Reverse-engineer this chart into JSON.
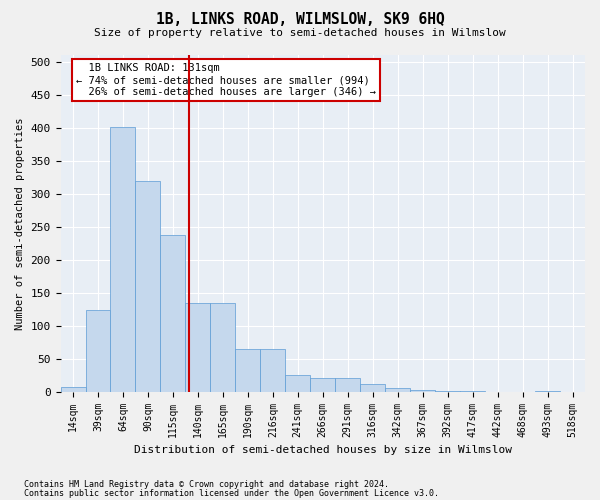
{
  "title": "1B, LINKS ROAD, WILMSLOW, SK9 6HQ",
  "subtitle": "Size of property relative to semi-detached houses in Wilmslow",
  "xlabel": "Distribution of semi-detached houses by size in Wilmslow",
  "ylabel": "Number of semi-detached properties",
  "bar_values": [
    7,
    123,
    401,
    319,
    238,
    135,
    135,
    65,
    65,
    25,
    20,
    20,
    12,
    6,
    2,
    1,
    1,
    0,
    0,
    1,
    0
  ],
  "bin_labels": [
    "14sqm",
    "39sqm",
    "64sqm",
    "90sqm",
    "115sqm",
    "140sqm",
    "165sqm",
    "190sqm",
    "216sqm",
    "241sqm",
    "266sqm",
    "291sqm",
    "316sqm",
    "342sqm",
    "367sqm",
    "392sqm",
    "417sqm",
    "442sqm",
    "468sqm",
    "493sqm",
    "518sqm"
  ],
  "bar_color": "#c5d8ed",
  "bar_edge_color": "#5b9bd5",
  "property_label": "1B LINKS ROAD: 131sqm",
  "pct_smaller": 74,
  "pct_smaller_count": 994,
  "pct_larger": 26,
  "pct_larger_count": 346,
  "vline_x": 4.64,
  "vline_color": "#cc0000",
  "annotation_box_color": "#cc0000",
  "ylim": [
    0,
    510
  ],
  "yticks": [
    0,
    50,
    100,
    150,
    200,
    250,
    300,
    350,
    400,
    450,
    500
  ],
  "footnote1": "Contains HM Land Registry data © Crown copyright and database right 2024.",
  "footnote2": "Contains public sector information licensed under the Open Government Licence v3.0.",
  "bg_color": "#e8eef5",
  "grid_color": "#ffffff",
  "fig_bg_color": "#f0f0f0"
}
